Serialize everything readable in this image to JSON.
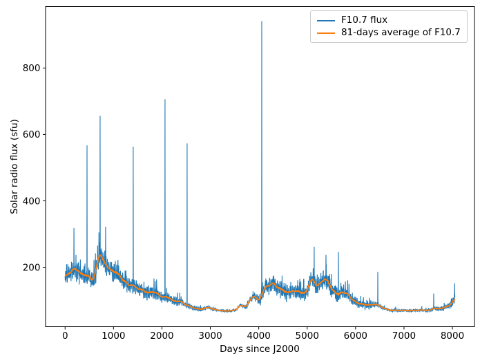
{
  "chart_data": {
    "type": "line",
    "title": "",
    "xlabel": "Days since J2000",
    "ylabel": "Solar radio flux (sfu)",
    "xlim": [
      -403,
      8456
    ],
    "ylim": [
      21,
      985
    ],
    "xticks": [
      0,
      1000,
      2000,
      3000,
      4000,
      5000,
      6000,
      7000,
      8000
    ],
    "yticks": [
      200,
      400,
      600,
      800
    ],
    "grid": false,
    "background": "#ffffff",
    "axis_color": "#000000",
    "legend": {
      "position": "upper right",
      "border_color": "#cccccc",
      "entries": [
        {
          "label": "F10.7 flux",
          "color": "#1f77b4"
        },
        {
          "label": "81-days average of F10.7",
          "color": "#ff7f0e"
        }
      ]
    },
    "series": [
      {
        "name": "F10.7 flux",
        "color": "#1f77b4",
        "kind": "daily_values",
        "x_range": [
          0,
          8053
        ],
        "x_step_days": 3,
        "unit": "sfu",
        "noise_halfwidth": [
          [
            0,
            32
          ],
          [
            900,
            32
          ],
          [
            1100,
            29
          ],
          [
            1500,
            26
          ],
          [
            1800,
            21
          ],
          [
            2200,
            16
          ],
          [
            2500,
            12
          ],
          [
            2700,
            8
          ],
          [
            2900,
            7
          ],
          [
            3100,
            4.5
          ],
          [
            3600,
            4.5
          ],
          [
            3750,
            8
          ],
          [
            3900,
            14
          ],
          [
            4050,
            20
          ],
          [
            4200,
            26
          ],
          [
            4400,
            28
          ],
          [
            4650,
            26
          ],
          [
            5000,
            26
          ],
          [
            5250,
            28
          ],
          [
            5550,
            26
          ],
          [
            5750,
            23
          ],
          [
            5950,
            18
          ],
          [
            6150,
            13
          ],
          [
            6450,
            9
          ],
          [
            6600,
            6
          ],
          [
            6750,
            4.5
          ],
          [
            7450,
            4.5
          ],
          [
            7650,
            7
          ],
          [
            7850,
            10
          ],
          [
            8053,
            14
          ]
        ],
        "spikes": [
          [
            182,
            318
          ],
          [
            453,
            567
          ],
          [
            700,
            305
          ],
          [
            724,
            656
          ],
          [
            838,
            322
          ],
          [
            1408,
            563
          ],
          [
            2065,
            706
          ],
          [
            2521,
            573
          ],
          [
            4062,
            941
          ],
          [
            5146,
            262
          ],
          [
            5389,
            237
          ],
          [
            5645,
            246
          ],
          [
            6458,
            186
          ],
          [
            7614,
            121
          ],
          [
            8045,
            152
          ]
        ]
      },
      {
        "name": "81-days average of F10.7",
        "color": "#ff7f0e",
        "kind": "81_day_moving_average",
        "unit": "sfu",
        "keypoints": [
          [
            0,
            170
          ],
          [
            60,
            177
          ],
          [
            160,
            193
          ],
          [
            230,
            188
          ],
          [
            330,
            181
          ],
          [
            420,
            177
          ],
          [
            510,
            170
          ],
          [
            560,
            158
          ],
          [
            615,
            167
          ],
          [
            685,
            222
          ],
          [
            730,
            232
          ],
          [
            775,
            226
          ],
          [
            830,
            206
          ],
          [
            875,
            198
          ],
          [
            920,
            191
          ],
          [
            975,
            186
          ],
          [
            1040,
            188
          ],
          [
            1130,
            172
          ],
          [
            1230,
            154
          ],
          [
            1330,
            144
          ],
          [
            1415,
            146
          ],
          [
            1515,
            133
          ],
          [
            1615,
            129
          ],
          [
            1705,
            125
          ],
          [
            1805,
            119
          ],
          [
            1905,
            123
          ],
          [
            1990,
            112
          ],
          [
            2090,
            108
          ],
          [
            2190,
            104
          ],
          [
            2275,
            94
          ],
          [
            2375,
            98
          ],
          [
            2475,
            88
          ],
          [
            2560,
            84
          ],
          [
            2660,
            78
          ],
          [
            2760,
            74
          ],
          [
            2860,
            75
          ],
          [
            2950,
            80
          ],
          [
            3050,
            74
          ],
          [
            3150,
            71
          ],
          [
            3250,
            69
          ],
          [
            3350,
            68
          ],
          [
            3450,
            69
          ],
          [
            3550,
            73
          ],
          [
            3620,
            87
          ],
          [
            3700,
            81
          ],
          [
            3760,
            82
          ],
          [
            3820,
            103
          ],
          [
            3890,
            114
          ],
          [
            3950,
            109
          ],
          [
            4010,
            99
          ],
          [
            4080,
            121
          ],
          [
            4150,
            139
          ],
          [
            4220,
            146
          ],
          [
            4290,
            150
          ],
          [
            4360,
            142
          ],
          [
            4430,
            131
          ],
          [
            4500,
            126
          ],
          [
            4550,
            123
          ],
          [
            4650,
            126
          ],
          [
            4750,
            128
          ],
          [
            4810,
            122
          ],
          [
            4890,
            120
          ],
          [
            4975,
            123
          ],
          [
            5025,
            136
          ],
          [
            5065,
            160
          ],
          [
            5095,
            168
          ],
          [
            5150,
            150
          ],
          [
            5190,
            142
          ],
          [
            5255,
            149
          ],
          [
            5310,
            156
          ],
          [
            5370,
            162
          ],
          [
            5425,
            157
          ],
          [
            5480,
            140
          ],
          [
            5530,
            131
          ],
          [
            5585,
            124
          ],
          [
            5645,
            118
          ],
          [
            5705,
            119
          ],
          [
            5775,
            117
          ],
          [
            5835,
            119
          ],
          [
            5905,
            105
          ],
          [
            5990,
            94
          ],
          [
            6105,
            90
          ],
          [
            6235,
            84
          ],
          [
            6305,
            86
          ],
          [
            6420,
            88
          ],
          [
            6475,
            86
          ],
          [
            6555,
            78
          ],
          [
            6705,
            71
          ],
          [
            6805,
            70
          ],
          [
            6905,
            70
          ],
          [
            7005,
            70
          ],
          [
            7105,
            69
          ],
          [
            7205,
            70
          ],
          [
            7305,
            70
          ],
          [
            7355,
            72
          ],
          [
            7405,
            70
          ],
          [
            7505,
            70
          ],
          [
            7555,
            71
          ],
          [
            7635,
            77
          ],
          [
            7705,
            74
          ],
          [
            7760,
            75
          ],
          [
            7855,
            79
          ],
          [
            7905,
            82
          ],
          [
            7975,
            90
          ],
          [
            8025,
            100
          ],
          [
            8053,
            107
          ]
        ]
      }
    ]
  }
}
